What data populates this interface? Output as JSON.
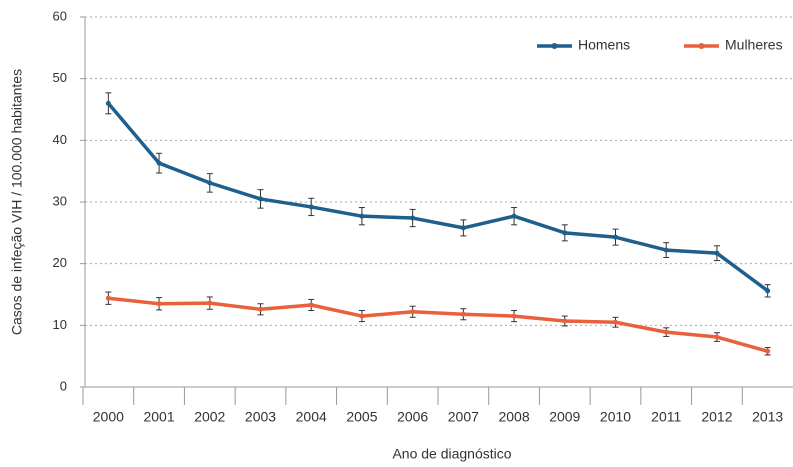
{
  "chart_data": {
    "type": "line",
    "xlabel": "Ano de diagnóstico",
    "ylabel": "Casos de infeção VIH / 100.000 habitantes",
    "categories": [
      "2000",
      "2001",
      "2002",
      "2003",
      "2004",
      "2005",
      "2006",
      "2007",
      "2008",
      "2009",
      "2010",
      "2011",
      "2012",
      "2013"
    ],
    "series": [
      {
        "name": "Homens",
        "color": "#1f5f8b",
        "values": [
          46.0,
          36.3,
          33.1,
          30.5,
          29.2,
          27.7,
          27.4,
          25.8,
          27.7,
          25.0,
          24.3,
          22.2,
          21.7,
          15.6
        ],
        "errors": [
          1.7,
          1.6,
          1.5,
          1.5,
          1.4,
          1.4,
          1.4,
          1.3,
          1.4,
          1.3,
          1.3,
          1.2,
          1.2,
          1.0
        ]
      },
      {
        "name": "Mulheres",
        "color": "#e8603c",
        "values": [
          14.4,
          13.5,
          13.6,
          12.6,
          13.3,
          11.5,
          12.2,
          11.8,
          11.5,
          10.7,
          10.5,
          8.9,
          8.1,
          5.8
        ],
        "errors": [
          1.0,
          1.0,
          1.0,
          0.9,
          0.9,
          0.9,
          0.9,
          0.9,
          0.9,
          0.8,
          0.8,
          0.7,
          0.7,
          0.6
        ]
      }
    ],
    "ylim": [
      0,
      60
    ],
    "yticks": [
      0,
      10,
      20,
      30,
      40,
      50,
      60
    ],
    "grid": true,
    "legend": "top-right"
  }
}
